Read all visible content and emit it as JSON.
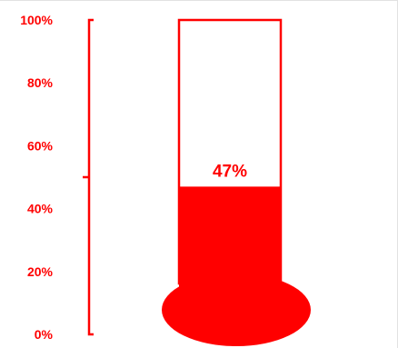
{
  "chart_data": {
    "type": "bar",
    "title": "",
    "xlabel": "",
    "ylabel": "",
    "ylim": [
      0,
      100
    ],
    "y_ticks": [
      {
        "value": 0,
        "label": "0%"
      },
      {
        "value": 20,
        "label": "20%"
      },
      {
        "value": 40,
        "label": "40%"
      },
      {
        "value": 60,
        "label": "60%"
      },
      {
        "value": 80,
        "label": "80%"
      },
      {
        "value": 100,
        "label": "100%"
      }
    ],
    "values": [
      47
    ],
    "value_label": "47%",
    "grid": false,
    "legend": "none",
    "style": "thermometer"
  },
  "colors": {
    "accent": "#ff0000",
    "background": "#ffffff"
  }
}
